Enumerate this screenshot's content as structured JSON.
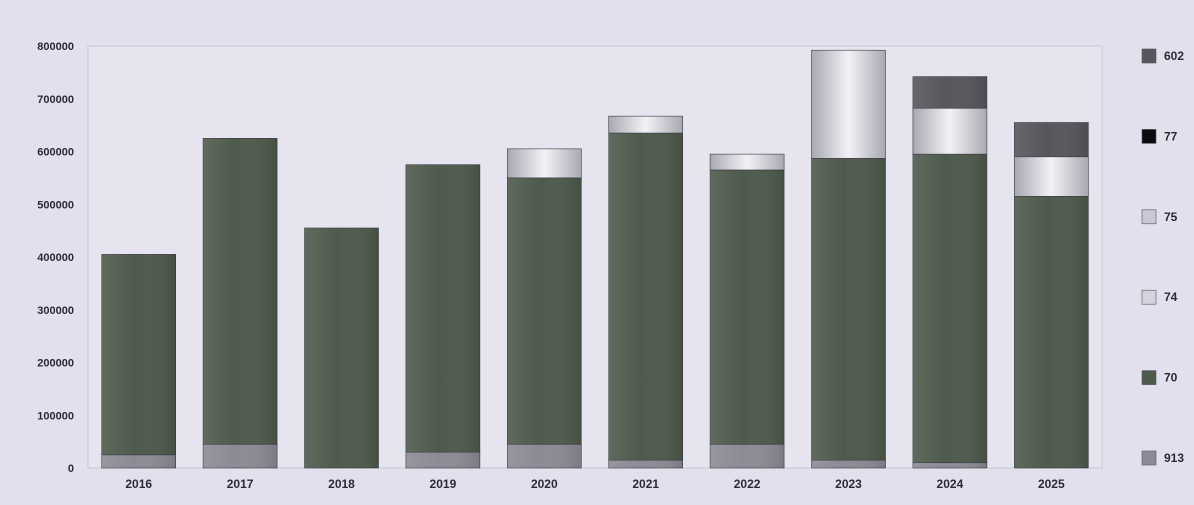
{
  "chart_data": {
    "type": "bar",
    "stacked": true,
    "title": "",
    "xlabel": "",
    "ylabel": "",
    "ylim": [
      0,
      800000
    ],
    "yticks": [
      "0",
      "100000",
      "200000",
      "300000",
      "400000",
      "500000",
      "600000",
      "700000",
      "800000"
    ],
    "grid": false,
    "legend_position": "right",
    "categories": [
      "2016",
      "2017",
      "2018",
      "2019",
      "2020",
      "2021",
      "2022",
      "2023",
      "2024",
      "2025"
    ],
    "series": [
      {
        "name": "913",
        "color": "#8c8a94",
        "values": [
          25000,
          45000,
          0,
          30000,
          45000,
          15000,
          45000,
          15000,
          10000,
          0
        ]
      },
      {
        "name": "70",
        "color": "#4e5a4c",
        "values": [
          380000,
          580000,
          455000,
          545000,
          505000,
          620000,
          520000,
          572000,
          585000,
          515000
        ]
      },
      {
        "name": "74",
        "color": "#d4d4dc",
        "values": [
          0,
          0,
          0,
          0,
          0,
          0,
          0,
          0,
          0,
          0
        ]
      },
      {
        "name": "75",
        "color": "#c9c9d3",
        "values": [
          0,
          0,
          0,
          0,
          55000,
          32000,
          30000,
          205000,
          87000,
          75000
        ]
      },
      {
        "name": "77",
        "color": "#0b0b0f",
        "values": [
          0,
          0,
          0,
          0,
          0,
          0,
          0,
          0,
          0,
          0
        ]
      },
      {
        "name": "602",
        "color": "#55575c",
        "values": [
          0,
          0,
          0,
          0,
          0,
          0,
          0,
          0,
          60000,
          65000
        ]
      }
    ]
  }
}
